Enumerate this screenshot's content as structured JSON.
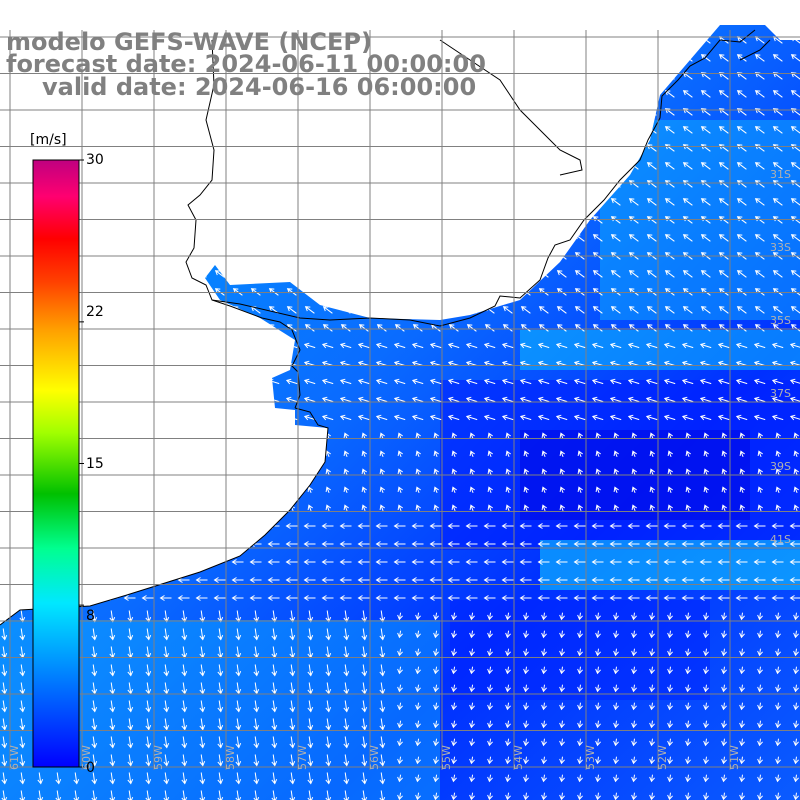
{
  "title": {
    "model": "modelo GEFS-WAVE (NCEP)",
    "forecast_date": "forecast date: 2024-06-11 00:00:00",
    "valid_date": "valid date: 2024-06-16 06:00:00"
  },
  "colorbar": {
    "unit": "[m/s]",
    "ticks": [
      "30",
      "22",
      "15",
      "8",
      "0"
    ],
    "tick_values": [
      30,
      22,
      15,
      8,
      0
    ],
    "range": [
      0,
      30
    ],
    "colors": [
      "#0000ff",
      "#0080ff",
      "#00e0ff",
      "#00ff80",
      "#00c000",
      "#80ff00",
      "#ffff00",
      "#ffa000",
      "#ff4000",
      "#ff0000",
      "#ff0060",
      "#c00080"
    ]
  },
  "map": {
    "variable": "wind speed and direction",
    "lat_labels": [
      "31S",
      "33S",
      "35S",
      "37S",
      "39S",
      "41S"
    ],
    "lon_labels": [
      "61W",
      "60W",
      "59W",
      "58W",
      "57W",
      "56W",
      "55W",
      "54W",
      "53W",
      "52W",
      "51W"
    ],
    "lat_values": [
      -31,
      -33,
      -35,
      -37,
      -39,
      -41
    ],
    "lon_values": [
      -61,
      -60,
      -59,
      -58,
      -57,
      -56,
      -55,
      -54,
      -53,
      -52,
      -51
    ],
    "ocean_color": "#1e6eff",
    "land_color": "#ffffff",
    "coast_color": "#000000",
    "grid_color": "#808080"
  }
}
